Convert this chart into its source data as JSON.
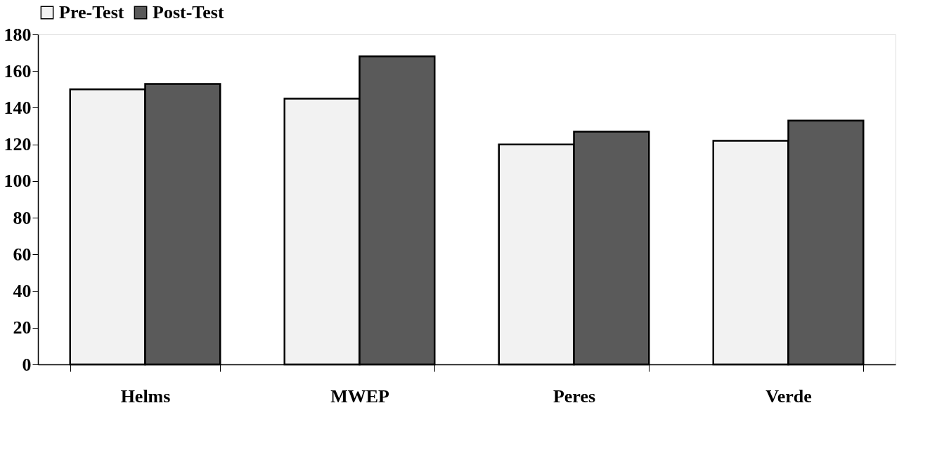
{
  "chart_data": {
    "type": "bar",
    "categories": [
      "Helms",
      "MWEP",
      "Peres",
      "Verde"
    ],
    "series": [
      {
        "name": "Pre-Test",
        "color": "#f2f2f2",
        "values": [
          150,
          145,
          120,
          122
        ]
      },
      {
        "name": "Post-Test",
        "color": "#5a5a5a",
        "values": [
          153,
          168,
          127,
          133
        ]
      }
    ],
    "ylim": [
      0,
      180
    ],
    "yticks": [
      0,
      20,
      40,
      60,
      80,
      100,
      120,
      140,
      160,
      180
    ],
    "legend": "top",
    "grid": false
  }
}
